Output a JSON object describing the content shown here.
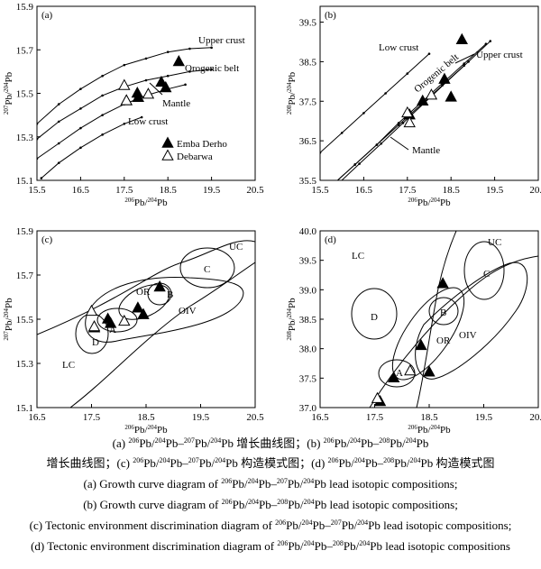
{
  "chart_data": [
    {
      "panel_label": "(a)",
      "type": "line",
      "xlabel": "206Pb/204Pb",
      "ylabel": "207Pb/204Pb",
      "xlim": [
        15.5,
        20.5
      ],
      "ylim": [
        15.1,
        15.9
      ],
      "xticks": [
        "15.5",
        "16.5",
        "17.5",
        "18.5",
        "19.5",
        "20.5"
      ],
      "yticks": [
        "15.1",
        "15.3",
        "15.5",
        "15.7",
        "15.9"
      ],
      "curves": [
        {
          "label": "Upper crust",
          "x": [
            15.5,
            16.0,
            16.5,
            17.0,
            17.5,
            18.0,
            18.5,
            19.0,
            19.5
          ],
          "y": [
            15.36,
            15.45,
            15.52,
            15.58,
            15.63,
            15.66,
            15.69,
            15.705,
            15.71
          ]
        },
        {
          "label": "Orogenic belt",
          "x": [
            15.5,
            16.0,
            16.5,
            17.0,
            17.5,
            18.0,
            18.5,
            19.0,
            19.5
          ],
          "y": [
            15.29,
            15.37,
            15.43,
            15.49,
            15.53,
            15.56,
            15.58,
            15.6,
            15.61
          ]
        },
        {
          "label": "Mantle",
          "x": [
            15.5,
            16.0,
            16.5,
            17.0,
            17.5,
            18.0,
            18.5,
            18.9
          ],
          "y": [
            15.2,
            15.27,
            15.34,
            15.4,
            15.45,
            15.49,
            15.52,
            15.54
          ]
        },
        {
          "label": "Low crust",
          "x": [
            15.6,
            16.0,
            16.5,
            17.0,
            17.5,
            17.9
          ],
          "y": [
            15.11,
            15.18,
            15.25,
            15.31,
            15.36,
            15.39
          ]
        }
      ],
      "series": [
        {
          "name": "Emba Derho",
          "marker": "filled-triangle",
          "x": [
            17.55,
            17.8,
            17.82,
            18.35,
            18.45,
            18.75
          ],
          "y": [
            15.465,
            15.5,
            15.48,
            15.55,
            15.525,
            15.645
          ]
        },
        {
          "name": "Debarwa",
          "marker": "open-triangle",
          "x": [
            17.5,
            17.55,
            18.05
          ],
          "y": [
            15.535,
            15.465,
            15.495
          ]
        }
      ],
      "legend": [
        "Emba Derho",
        "Debarwa"
      ],
      "legend_position": "bottom-right"
    },
    {
      "panel_label": "(b)",
      "type": "line",
      "xlabel": "206Pb/204Pb",
      "ylabel": "208Pb/204Pb",
      "xlim": [
        15.5,
        20.5
      ],
      "ylim": [
        35.5,
        39.9
      ],
      "xticks": [
        "15.5",
        "16.5",
        "17.5",
        "18.5",
        "19.5",
        "20.5"
      ],
      "yticks": [
        "35.5",
        "36.5",
        "37.5",
        "38.5",
        "39.5"
      ],
      "curves": [
        {
          "label": "Low crust",
          "x": [
            15.5,
            16.0,
            16.5,
            17.0,
            17.5,
            18.0
          ],
          "y": [
            36.2,
            36.7,
            37.2,
            37.7,
            38.2,
            38.7
          ]
        },
        {
          "label": "Orogenic belt",
          "x": [
            15.8,
            16.3,
            16.8,
            17.3,
            17.8,
            18.3,
            18.8,
            19.3
          ],
          "y": [
            35.4,
            35.9,
            36.4,
            36.95,
            37.45,
            37.95,
            38.45,
            38.95
          ]
        },
        {
          "label": "Upper crust",
          "x": [
            15.9,
            16.4,
            16.9,
            17.4,
            17.9,
            18.4,
            18.9,
            19.4
          ],
          "y": [
            35.4,
            35.92,
            36.43,
            36.95,
            37.47,
            37.99,
            38.5,
            39.02
          ]
        },
        {
          "label": "Mantle",
          "x": [
            15.8,
            16.3,
            16.8,
            17.3,
            17.8,
            18.3,
            18.8
          ],
          "y": [
            35.4,
            35.9,
            36.4,
            36.9,
            37.4,
            37.9,
            38.4
          ]
        }
      ],
      "series": [
        {
          "name": "Emba Derho",
          "marker": "filled-triangle",
          "x": [
            17.55,
            17.85,
            18.35,
            18.5,
            18.75
          ],
          "y": [
            37.15,
            37.5,
            38.05,
            37.6,
            39.05
          ]
        },
        {
          "name": "Debarwa",
          "marker": "open-triangle",
          "x": [
            17.5,
            17.55,
            18.05
          ],
          "y": [
            37.2,
            36.95,
            37.65
          ]
        }
      ]
    },
    {
      "panel_label": "(c)",
      "type": "scatter",
      "xlabel": "206Pb/204Pb",
      "ylabel": "207Pb/204Pb",
      "xlim": [
        16.5,
        20.5
      ],
      "ylim": [
        15.1,
        15.9
      ],
      "xticks": [
        "16.5",
        "17.5",
        "18.5",
        "19.5",
        "20.5"
      ],
      "yticks": [
        "15.1",
        "15.3",
        "15.5",
        "15.7",
        "15.9"
      ],
      "region_labels": [
        "UC",
        "C",
        "OR",
        "B",
        "OIV",
        "D",
        "A",
        "LC"
      ],
      "series": [
        {
          "name": "Emba Derho",
          "marker": "filled-triangle",
          "x": [
            17.55,
            17.8,
            17.85,
            18.35,
            18.45,
            18.75
          ],
          "y": [
            15.46,
            15.5,
            15.48,
            15.55,
            15.52,
            15.645
          ]
        },
        {
          "name": "Debarwa",
          "marker": "open-triangle",
          "x": [
            17.5,
            17.55,
            18.1
          ],
          "y": [
            15.535,
            15.465,
            15.49
          ]
        }
      ]
    },
    {
      "panel_label": "(d)",
      "type": "scatter",
      "xlabel": "206Pb/204Pb",
      "ylabel": "208Pb/204Pb",
      "xlim": [
        16.5,
        20.5
      ],
      "ylim": [
        37.0,
        40.0
      ],
      "xticks": [
        "16.5",
        "17.5",
        "18.5",
        "19.5",
        "20.5"
      ],
      "yticks": [
        "37.0",
        "37.5",
        "38.0",
        "38.5",
        "39.0",
        "39.5",
        "40.0"
      ],
      "region_labels": [
        "LC",
        "UC",
        "C",
        "D",
        "B",
        "OR",
        "OIV",
        "A"
      ],
      "series": [
        {
          "name": "Emba Derho",
          "marker": "filled-triangle",
          "x": [
            17.6,
            17.85,
            18.35,
            18.5,
            18.75
          ],
          "y": [
            37.1,
            37.5,
            38.05,
            37.6,
            39.1
          ]
        },
        {
          "name": "Debarwa",
          "marker": "open-triangle",
          "x": [
            17.55,
            18.15
          ],
          "y": [
            37.15,
            37.62
          ]
        }
      ]
    }
  ],
  "caption": {
    "zh_line1": "(a) 206Pb/204Pb–207Pb/204Pb 增长曲线图；(b) 206Pb/204Pb–208Pb/204Pb",
    "zh_line2": "增长曲线图；(c) 206Pb/204Pb–207Pb/204Pb 构造模式图；(d) 206Pb/204Pb–208Pb/204Pb 构造模式图",
    "en_line1": "(a) Growth curve diagram of 206Pb/204Pb–207Pb/204Pb lead isotopic compositions;",
    "en_line2": "(b) Growth curve diagram of 206Pb/204Pb–208Pb/204Pb lead isotopic compositions;",
    "en_line3": "(c) Tectonic environment discrimination diagram of 206Pb/204Pb–207Pb/204Pb lead isotopic compositions;",
    "en_line4": "(d) Tectonic environment discrimination diagram of 206Pb/204Pb–208Pb/204Pb lead isotopic compositions"
  }
}
